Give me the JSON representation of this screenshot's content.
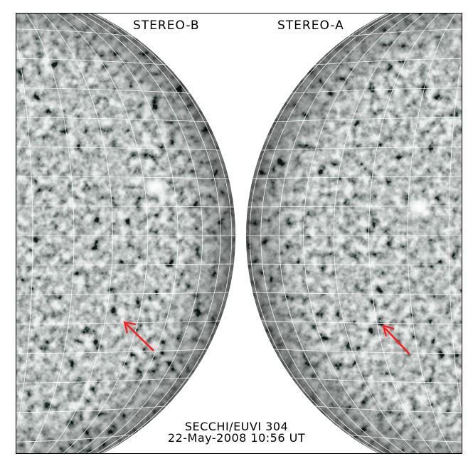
{
  "labels": {
    "left_spacecraft": "STEREO-B",
    "right_spacecraft": "STEREO-A"
  },
  "caption": {
    "instrument": "SECCHI/EUVI 304",
    "datetime": "22-May-2008 10:56 UT"
  },
  "colors": {
    "disk_mid": "#8c9593",
    "disk_light": "#e6ecea",
    "disk_dark": "#2c3533",
    "grid": "#ffffff",
    "arrow": "#ff1a1a",
    "background": "#ffffff"
  },
  "features": {
    "active_region": "bright-patch",
    "filament_marker": "red-arrow"
  }
}
